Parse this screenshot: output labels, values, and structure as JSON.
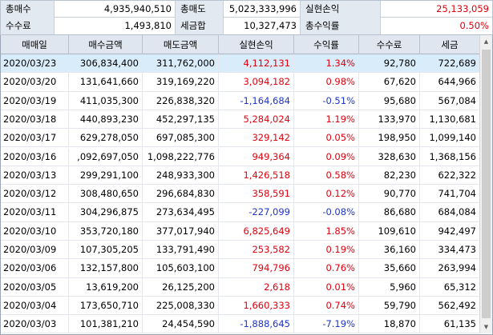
{
  "summary": {
    "row0": [
      {
        "label": "총매수",
        "value": "4,935,940,510",
        "color": "default"
      },
      {
        "label": "총매도",
        "value": "5,023,333,996",
        "color": "default"
      },
      {
        "label": "실현손익",
        "value": "25,133,059",
        "color": "red"
      }
    ],
    "row1": [
      {
        "label": "수수료",
        "value": "1,493,810",
        "color": "default"
      },
      {
        "label": "세금합",
        "value": "10,327,473",
        "color": "default"
      },
      {
        "label": "총수익률",
        "value": "0.50%",
        "color": "red"
      }
    ]
  },
  "table": {
    "headers": [
      "매매일",
      "매수금액",
      "매도금액",
      "실현손익",
      "수익률",
      "수수료",
      "세금"
    ],
    "selected_row": 0,
    "rows": [
      {
        "date": "2020/03/23",
        "buy": "306,834,400",
        "sell": "311,762,000",
        "pnl": "4,112,131",
        "rate": "1.34%",
        "fee": "92,780",
        "tax": "722,689",
        "sign": "pos"
      },
      {
        "date": "2020/03/20",
        "buy": "131,641,660",
        "sell": "319,169,220",
        "pnl": "3,094,182",
        "rate": "0.98%",
        "fee": "67,620",
        "tax": "644,966",
        "sign": "pos"
      },
      {
        "date": "2020/03/19",
        "buy": "411,035,300",
        "sell": "226,838,320",
        "pnl": "-1,164,684",
        "rate": "-0.51%",
        "fee": "95,680",
        "tax": "567,084",
        "sign": "neg"
      },
      {
        "date": "2020/03/18",
        "buy": "440,893,230",
        "sell": "452,297,135",
        "pnl": "5,284,024",
        "rate": "1.19%",
        "fee": "133,970",
        "tax": "1,130,681",
        "sign": "pos"
      },
      {
        "date": "2020/03/17",
        "buy": "629,278,050",
        "sell": "697,085,300",
        "pnl": "329,142",
        "rate": "0.05%",
        "fee": "198,950",
        "tax": "1,099,140",
        "sign": "pos"
      },
      {
        "date": "2020/03/16",
        "buy": ",092,697,050",
        "sell": "1,098,222,776",
        "pnl": "949,364",
        "rate": "0.09%",
        "fee": "328,630",
        "tax": "1,368,156",
        "sign": "pos"
      },
      {
        "date": "2020/03/13",
        "buy": "299,291,100",
        "sell": "248,933,300",
        "pnl": "1,426,518",
        "rate": "0.58%",
        "fee": "82,230",
        "tax": "622,322",
        "sign": "pos"
      },
      {
        "date": "2020/03/12",
        "buy": "308,480,650",
        "sell": "296,684,830",
        "pnl": "358,591",
        "rate": "0.12%",
        "fee": "90,770",
        "tax": "741,704",
        "sign": "pos"
      },
      {
        "date": "2020/03/11",
        "buy": "304,296,875",
        "sell": "273,634,495",
        "pnl": "-227,099",
        "rate": "-0.08%",
        "fee": "86,680",
        "tax": "684,084",
        "sign": "neg"
      },
      {
        "date": "2020/03/10",
        "buy": "353,720,180",
        "sell": "377,017,940",
        "pnl": "6,825,649",
        "rate": "1.85%",
        "fee": "109,610",
        "tax": "942,497",
        "sign": "pos"
      },
      {
        "date": "2020/03/09",
        "buy": "107,305,205",
        "sell": "133,791,490",
        "pnl": "253,582",
        "rate": "0.19%",
        "fee": "36,160",
        "tax": "334,473",
        "sign": "pos"
      },
      {
        "date": "2020/03/06",
        "buy": "132,157,800",
        "sell": "105,603,100",
        "pnl": "794,796",
        "rate": "0.76%",
        "fee": "35,660",
        "tax": "263,994",
        "sign": "pos"
      },
      {
        "date": "2020/03/05",
        "buy": "13,619,200",
        "sell": "26,125,200",
        "pnl": "2,618",
        "rate": "0.01%",
        "fee": "5,960",
        "tax": "65,312",
        "sign": "pos"
      },
      {
        "date": "2020/03/04",
        "buy": "173,650,710",
        "sell": "225,008,330",
        "pnl": "1,660,333",
        "rate": "0.74%",
        "fee": "59,790",
        "tax": "562,492",
        "sign": "pos"
      },
      {
        "date": "2020/03/03",
        "buy": "101,381,210",
        "sell": "24,454,590",
        "pnl": "-1,888,645",
        "rate": "-7.19%",
        "fee": "18,870",
        "tax": "61,135",
        "sign": "neg"
      }
    ]
  },
  "scrollbar": {
    "up_icon": "triangle-up-icon",
    "down_icon": "triangle-down-icon"
  },
  "colors": {
    "positive": "#e0000d",
    "negative": "#1f34c8",
    "header_bg": "#dfe6ef",
    "label_bg": "#e3e9f1",
    "selected_row": "#d9ecfa"
  }
}
